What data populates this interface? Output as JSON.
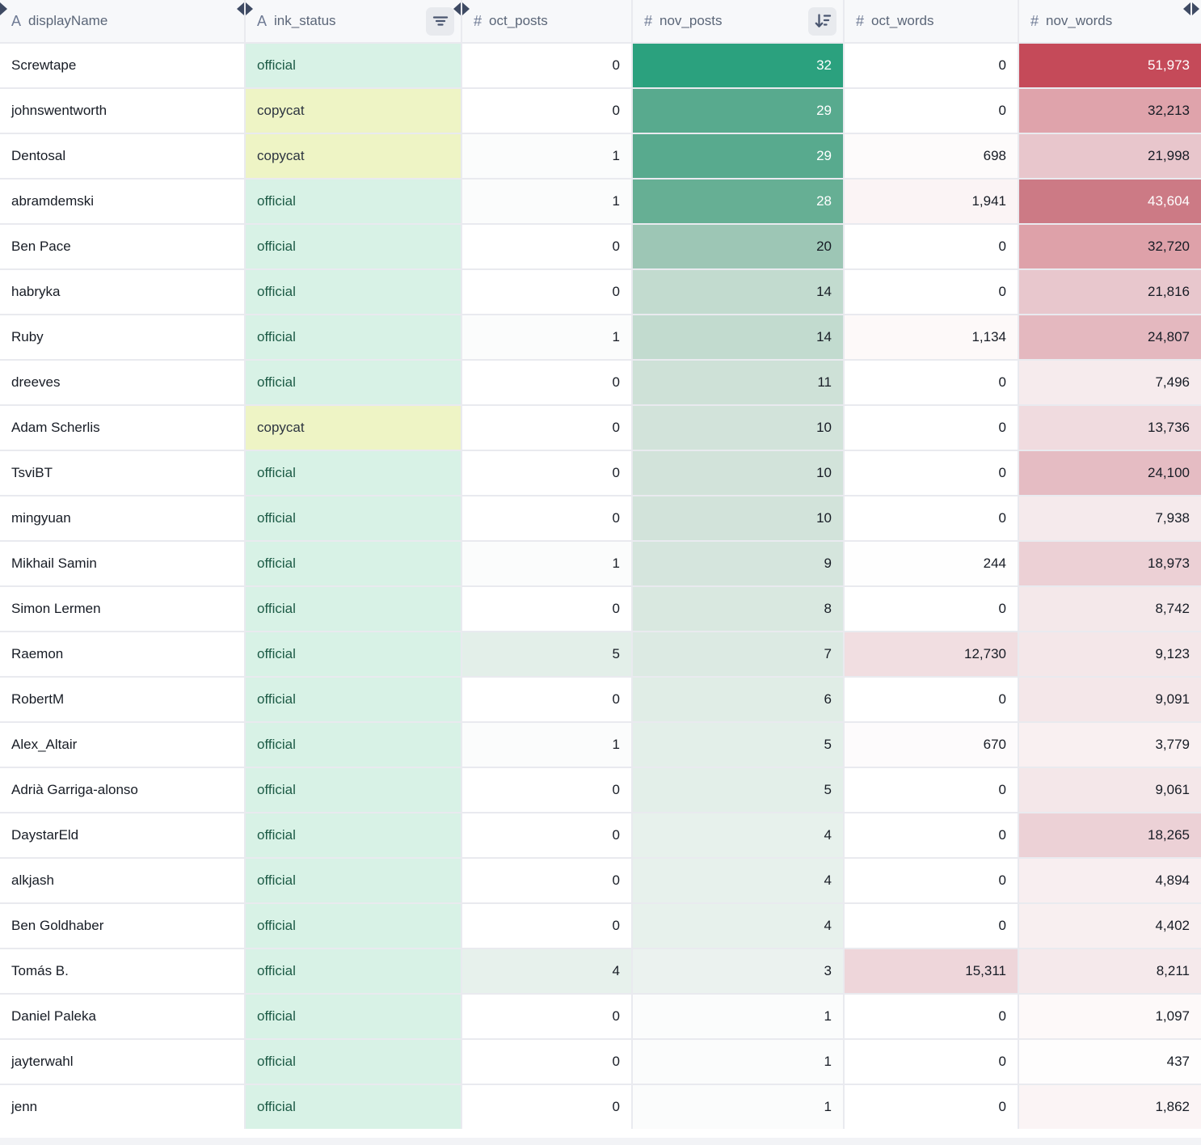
{
  "table": {
    "columns": [
      {
        "key": "displayName",
        "label": "displayName",
        "type": "text",
        "align": "left"
      },
      {
        "key": "ink_status",
        "label": "ink_status",
        "type": "text",
        "align": "left",
        "has_filter_button": true
      },
      {
        "key": "oct_posts",
        "label": "oct_posts",
        "type": "number",
        "align": "right",
        "scale": "green"
      },
      {
        "key": "nov_posts",
        "label": "nov_posts",
        "type": "number",
        "align": "right",
        "scale": "green",
        "has_sort_desc_button": true
      },
      {
        "key": "oct_words",
        "label": "oct_words",
        "type": "number",
        "align": "right",
        "scale": "red"
      },
      {
        "key": "nov_words",
        "label": "nov_words",
        "type": "number",
        "align": "right",
        "scale": "red"
      }
    ],
    "rows": [
      {
        "displayName": "Screwtape",
        "ink_status": "official",
        "oct_posts": 0,
        "nov_posts": 32,
        "oct_words": 0,
        "nov_words": 51973
      },
      {
        "displayName": "johnswentworth",
        "ink_status": "copycat",
        "oct_posts": 0,
        "nov_posts": 29,
        "oct_words": 0,
        "nov_words": 32213
      },
      {
        "displayName": "Dentosal",
        "ink_status": "copycat",
        "oct_posts": 1,
        "nov_posts": 29,
        "oct_words": 698,
        "nov_words": 21998
      },
      {
        "displayName": "abramdemski",
        "ink_status": "official",
        "oct_posts": 1,
        "nov_posts": 28,
        "oct_words": 1941,
        "nov_words": 43604
      },
      {
        "displayName": "Ben Pace",
        "ink_status": "official",
        "oct_posts": 0,
        "nov_posts": 20,
        "oct_words": 0,
        "nov_words": 32720
      },
      {
        "displayName": "habryka",
        "ink_status": "official",
        "oct_posts": 0,
        "nov_posts": 14,
        "oct_words": 0,
        "nov_words": 21816
      },
      {
        "displayName": "Ruby",
        "ink_status": "official",
        "oct_posts": 1,
        "nov_posts": 14,
        "oct_words": 1134,
        "nov_words": 24807
      },
      {
        "displayName": "dreeves",
        "ink_status": "official",
        "oct_posts": 0,
        "nov_posts": 11,
        "oct_words": 0,
        "nov_words": 7496
      },
      {
        "displayName": "Adam Scherlis",
        "ink_status": "copycat",
        "oct_posts": 0,
        "nov_posts": 10,
        "oct_words": 0,
        "nov_words": 13736
      },
      {
        "displayName": "TsviBT",
        "ink_status": "official",
        "oct_posts": 0,
        "nov_posts": 10,
        "oct_words": 0,
        "nov_words": 24100
      },
      {
        "displayName": "mingyuan",
        "ink_status": "official",
        "oct_posts": 0,
        "nov_posts": 10,
        "oct_words": 0,
        "nov_words": 7938
      },
      {
        "displayName": "Mikhail Samin",
        "ink_status": "official",
        "oct_posts": 1,
        "nov_posts": 9,
        "oct_words": 244,
        "nov_words": 18973
      },
      {
        "displayName": "Simon Lermen",
        "ink_status": "official",
        "oct_posts": 0,
        "nov_posts": 8,
        "oct_words": 0,
        "nov_words": 8742
      },
      {
        "displayName": "Raemon",
        "ink_status": "official",
        "oct_posts": 5,
        "nov_posts": 7,
        "oct_words": 12730,
        "nov_words": 9123
      },
      {
        "displayName": "RobertM",
        "ink_status": "official",
        "oct_posts": 0,
        "nov_posts": 6,
        "oct_words": 0,
        "nov_words": 9091
      },
      {
        "displayName": "Alex_Altair",
        "ink_status": "official",
        "oct_posts": 1,
        "nov_posts": 5,
        "oct_words": 670,
        "nov_words": 3779
      },
      {
        "displayName": "Adrià Garriga-alonso",
        "ink_status": "official",
        "oct_posts": 0,
        "nov_posts": 5,
        "oct_words": 0,
        "nov_words": 9061
      },
      {
        "displayName": "DaystarEld",
        "ink_status": "official",
        "oct_posts": 0,
        "nov_posts": 4,
        "oct_words": 0,
        "nov_words": 18265
      },
      {
        "displayName": "alkjash",
        "ink_status": "official",
        "oct_posts": 0,
        "nov_posts": 4,
        "oct_words": 0,
        "nov_words": 4894
      },
      {
        "displayName": "Ben Goldhaber",
        "ink_status": "official",
        "oct_posts": 0,
        "nov_posts": 4,
        "oct_words": 0,
        "nov_words": 4402
      },
      {
        "displayName": "Tomás B.",
        "ink_status": "official",
        "oct_posts": 4,
        "nov_posts": 3,
        "oct_words": 15311,
        "nov_words": 8211
      },
      {
        "displayName": "Daniel Paleka",
        "ink_status": "official",
        "oct_posts": 0,
        "nov_posts": 1,
        "oct_words": 0,
        "nov_words": 1097
      },
      {
        "displayName": "jayterwahl",
        "ink_status": "official",
        "oct_posts": 0,
        "nov_posts": 1,
        "oct_words": 0,
        "nov_words": 437
      },
      {
        "displayName": "jenn",
        "ink_status": "official",
        "oct_posts": 0,
        "nov_posts": 1,
        "oct_words": 0,
        "nov_words": 1862
      }
    ]
  },
  "icons": {
    "text_type": "A",
    "number_type": "#",
    "filter": "filter-lines-icon",
    "sort_desc": "sort-descending-icon",
    "resize": "column-resize-icon"
  },
  "status_styles": {
    "official": {
      "bg": "#d8f2e6",
      "text": "#1d5b46"
    },
    "copycat": {
      "bg": "#eef4c5",
      "text": "#2c3440"
    }
  },
  "scales": {
    "green": {
      "domain": [
        0,
        32
      ],
      "white_text_from": 0.85,
      "stops": [
        [
          0,
          "#ffffff"
        ],
        [
          0.031,
          "#fbfcfc"
        ],
        [
          0.094,
          "#ebf2ef"
        ],
        [
          0.156,
          "#e3efe9"
        ],
        [
          0.313,
          "#d2e3da"
        ],
        [
          0.438,
          "#c2dbcf"
        ],
        [
          0.625,
          "#9dc6b5"
        ],
        [
          0.875,
          "#66af94"
        ],
        [
          0.906,
          "#58aa8e"
        ],
        [
          1,
          "#2ba17e"
        ]
      ]
    },
    "red": {
      "domain": [
        0,
        51973
      ],
      "white_text_from": 0.8,
      "stops": [
        [
          0,
          "#ffffff"
        ],
        [
          0.008,
          "#fefdfd"
        ],
        [
          0.036,
          "#fbf4f5"
        ],
        [
          0.085,
          "#f8eff0"
        ],
        [
          0.144,
          "#f6ebed"
        ],
        [
          0.174,
          "#f4e7e9"
        ],
        [
          0.264,
          "#f0dbdf"
        ],
        [
          0.295,
          "#eed6da"
        ],
        [
          0.365,
          "#ecd0d5"
        ],
        [
          0.423,
          "#e8c6cc"
        ],
        [
          0.464,
          "#e5bcc3"
        ],
        [
          0.477,
          "#e4b8bf"
        ],
        [
          0.62,
          "#dfa3ab"
        ],
        [
          0.839,
          "#cc7a85"
        ],
        [
          1,
          "#c54a59"
        ]
      ]
    }
  },
  "text_colors": {
    "dark": "#171c25",
    "light": "#ffffff",
    "header": "#5b6678"
  }
}
